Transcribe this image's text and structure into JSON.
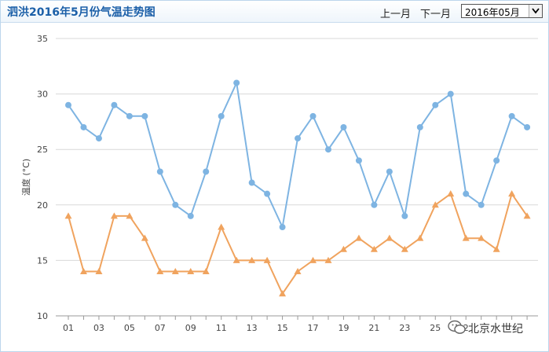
{
  "header": {
    "title": "泗洪2016年5月份气温走势图",
    "prev_label": "上一月",
    "next_label": "下一月",
    "month_value": "2016年05月"
  },
  "watermark": {
    "text": "北京水世纪"
  },
  "chart_data": {
    "type": "line",
    "title": "泗洪2016年5月份气温走势图",
    "ylabel": "温度 (°C)",
    "xlabel": "",
    "ylim": [
      10,
      35
    ],
    "yticks": [
      10,
      15,
      20,
      25,
      30,
      35
    ],
    "grid": true,
    "x": [
      "01",
      "02",
      "03",
      "04",
      "05",
      "06",
      "07",
      "08",
      "09",
      "10",
      "11",
      "12",
      "13",
      "14",
      "15",
      "16",
      "17",
      "18",
      "19",
      "20",
      "21",
      "22",
      "23",
      "24",
      "25",
      "26",
      "27",
      "28",
      "29",
      "30",
      "31"
    ],
    "xtick_labels": [
      "01",
      "03",
      "05",
      "07",
      "09",
      "11",
      "13",
      "15",
      "17",
      "19",
      "21",
      "23",
      "25",
      "2"
    ],
    "series": [
      {
        "color": "#7eb4e2",
        "marker": "circle",
        "values": [
          29,
          27,
          26,
          29,
          28,
          28,
          23,
          20,
          19,
          23,
          28,
          31,
          22,
          21,
          18,
          26,
          28,
          25,
          27,
          24,
          20,
          23,
          19,
          27,
          29,
          30,
          21,
          20,
          24,
          28,
          27
        ]
      },
      {
        "color": "#f0a35e",
        "marker": "triangle",
        "values": [
          19,
          14,
          14,
          19,
          19,
          17,
          14,
          14,
          14,
          14,
          18,
          15,
          15,
          15,
          12,
          14,
          15,
          15,
          16,
          17,
          16,
          17,
          16,
          17,
          20,
          21,
          17,
          17,
          16,
          21,
          19
        ]
      }
    ]
  }
}
